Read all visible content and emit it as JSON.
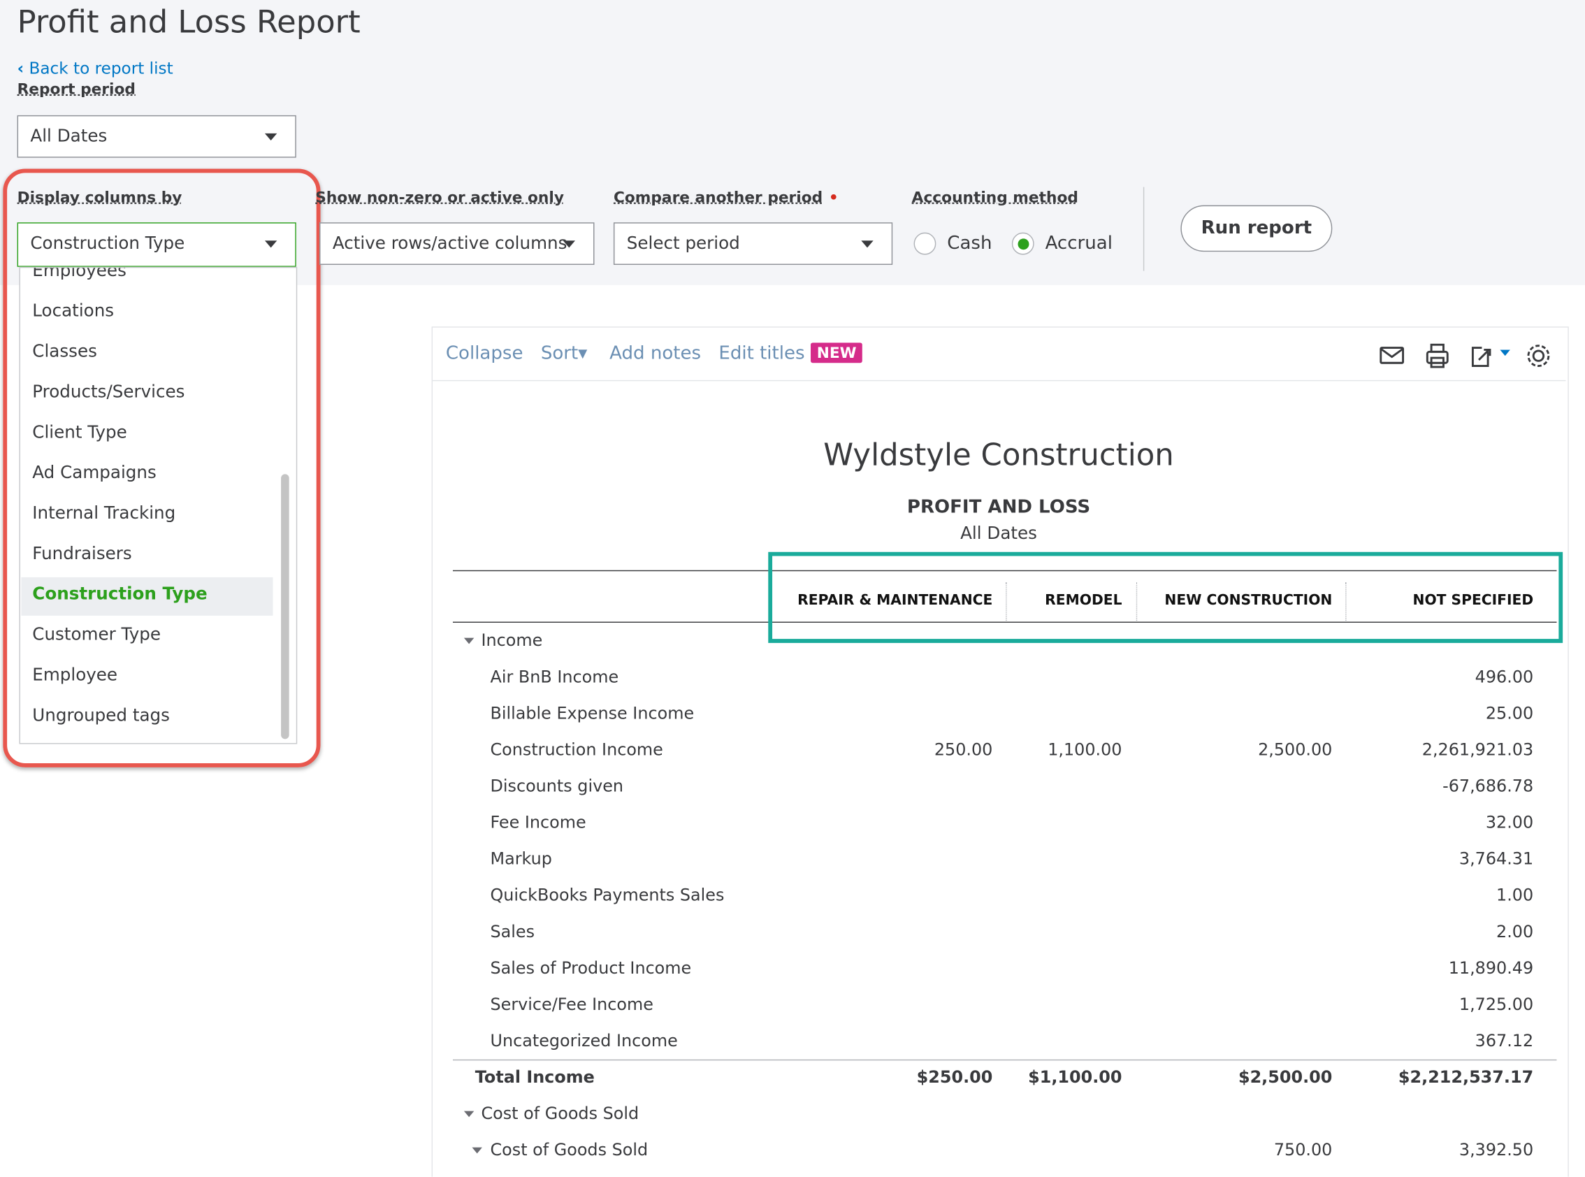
{
  "header": {
    "title": "Profit and Loss Report",
    "back_link": "Back to report list"
  },
  "filters": {
    "report_period": {
      "label": "Report period",
      "value": "All Dates"
    },
    "display_columns": {
      "label": "Display columns by",
      "value": "Construction Type",
      "options": [
        "Employees",
        "Locations",
        "Classes",
        "Products/Services",
        "Client Type",
        "Ad Campaigns",
        "Internal Tracking",
        "Fundraisers",
        "Construction Type",
        "Customer Type",
        "Employee",
        "Ungrouped tags"
      ],
      "selected": 8
    },
    "non_zero": {
      "label": "Show non-zero or active only",
      "value": "Active rows/active columns"
    },
    "compare": {
      "label": "Compare another period",
      "value": "Select period"
    },
    "accounting_method": {
      "label": "Accounting method",
      "options": [
        "Cash",
        "Accrual"
      ],
      "selected": 1
    },
    "run_button": "Run report"
  },
  "toolbar": {
    "items": [
      "Collapse",
      "Sort",
      "Add notes",
      "Edit titles"
    ],
    "badge": "NEW"
  },
  "report": {
    "company": "Wyldstyle Construction",
    "title": "PROFIT AND LOSS",
    "period": "All Dates",
    "columns": [
      "REPAIR & MAINTENANCE",
      "REMODEL",
      "NEW CONSTRUCTION",
      "NOT SPECIFIED"
    ],
    "rows": [
      {
        "label": "Income",
        "kind": "section",
        "cells": [
          null,
          null,
          null,
          null
        ]
      },
      {
        "label": "Air BnB Income",
        "kind": "item",
        "cells": [
          null,
          null,
          null,
          "496.00"
        ]
      },
      {
        "label": "Billable Expense Income",
        "kind": "item",
        "cells": [
          null,
          null,
          null,
          "25.00"
        ]
      },
      {
        "label": "Construction Income",
        "kind": "item",
        "cells": [
          "250.00",
          "1,100.00",
          "2,500.00",
          "2,261,921.03"
        ]
      },
      {
        "label": "Discounts given",
        "kind": "item",
        "cells": [
          null,
          null,
          null,
          "-67,686.78"
        ]
      },
      {
        "label": "Fee Income",
        "kind": "item",
        "cells": [
          null,
          null,
          null,
          "32.00"
        ]
      },
      {
        "label": "Markup",
        "kind": "item",
        "cells": [
          null,
          null,
          null,
          "3,764.31"
        ]
      },
      {
        "label": "QuickBooks Payments Sales",
        "kind": "item",
        "cells": [
          null,
          null,
          null,
          "1.00"
        ]
      },
      {
        "label": "Sales",
        "kind": "item",
        "cells": [
          null,
          null,
          null,
          "2.00"
        ]
      },
      {
        "label": "Sales of Product Income",
        "kind": "item",
        "cells": [
          null,
          null,
          null,
          "11,890.49"
        ]
      },
      {
        "label": "Service/Fee Income",
        "kind": "item",
        "cells": [
          null,
          null,
          null,
          "1,725.00"
        ]
      },
      {
        "label": "Uncategorized Income",
        "kind": "item",
        "cells": [
          null,
          null,
          null,
          "367.12"
        ]
      },
      {
        "label": "Total Income",
        "kind": "total",
        "cells": [
          "$250.00",
          "$1,100.00",
          "$2,500.00",
          "$2,212,537.17"
        ]
      },
      {
        "label": "Cost of Goods Sold",
        "kind": "section",
        "cells": [
          null,
          null,
          null,
          null
        ]
      },
      {
        "label": "Cost of Goods Sold",
        "kind": "subsection",
        "cells": [
          null,
          null,
          "750.00",
          "3,392.50"
        ]
      }
    ]
  }
}
